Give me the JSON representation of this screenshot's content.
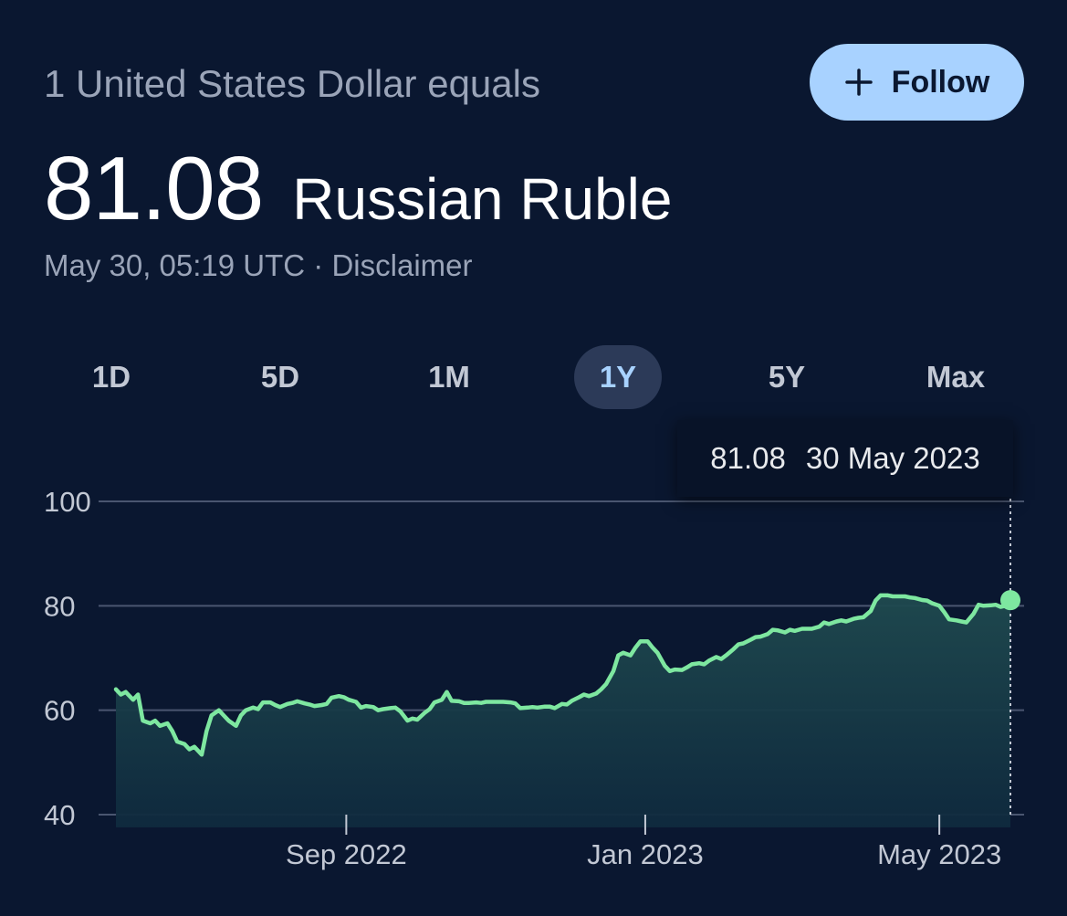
{
  "header": {
    "label": "1 United States Dollar equals",
    "follow_label": "Follow"
  },
  "rate": {
    "value": "81.08",
    "currency": "Russian Ruble",
    "timestamp": "May 30, 05:19 UTC",
    "separator": "·",
    "disclaimer": "Disclaimer"
  },
  "range_tabs": [
    {
      "label": "1D",
      "active": false
    },
    {
      "label": "5D",
      "active": false
    },
    {
      "label": "1M",
      "active": false
    },
    {
      "label": "1Y",
      "active": true
    },
    {
      "label": "5Y",
      "active": false
    },
    {
      "label": "Max",
      "active": false
    }
  ],
  "tooltip": {
    "value": "81.08",
    "date": "30 May 2023"
  },
  "colors": {
    "background": "#0a1730",
    "line": "#7ee7a0",
    "accent": "#a8d2ff",
    "gridline": "#4a5670"
  },
  "chart_data": {
    "type": "line",
    "title": "",
    "xlabel": "",
    "ylabel": "",
    "ylim": [
      40,
      100
    ],
    "yticks": [
      100,
      80,
      60,
      40
    ],
    "xticks": [
      {
        "date": "2022-09-01",
        "label": "Sep 2022"
      },
      {
        "date": "2023-01-01",
        "label": "Jan 2023"
      },
      {
        "date": "2023-05-01",
        "label": "May 2023"
      }
    ],
    "grid": true,
    "fill_area": true,
    "series": [
      {
        "name": "",
        "points": [
          [
            "2022-05-30",
            64
          ],
          [
            "2022-06-01",
            63
          ],
          [
            "2022-06-03",
            63.5
          ],
          [
            "2022-06-06",
            62
          ],
          [
            "2022-06-08",
            63
          ],
          [
            "2022-06-10",
            58
          ],
          [
            "2022-06-13",
            57.5
          ],
          [
            "2022-06-15",
            58
          ],
          [
            "2022-06-17",
            57
          ],
          [
            "2022-06-20",
            57.5
          ],
          [
            "2022-06-22",
            56
          ],
          [
            "2022-06-24",
            54
          ],
          [
            "2022-06-27",
            53.5
          ],
          [
            "2022-06-29",
            52.5
          ],
          [
            "2022-07-01",
            53
          ],
          [
            "2022-07-04",
            51.5
          ],
          [
            "2022-07-06",
            56
          ],
          [
            "2022-07-08",
            59
          ],
          [
            "2022-07-11",
            60
          ],
          [
            "2022-07-13",
            59
          ],
          [
            "2022-07-15",
            58
          ],
          [
            "2022-07-18",
            57
          ],
          [
            "2022-07-20",
            59
          ],
          [
            "2022-07-22",
            60
          ],
          [
            "2022-07-25",
            60.5
          ],
          [
            "2022-07-27",
            60.2
          ],
          [
            "2022-07-29",
            61.5
          ],
          [
            "2022-08-01",
            61.5
          ],
          [
            "2022-08-03",
            61
          ],
          [
            "2022-08-05",
            60.6
          ],
          [
            "2022-08-08",
            61.2
          ],
          [
            "2022-08-10",
            61.4
          ],
          [
            "2022-08-12",
            61.7
          ],
          [
            "2022-08-15",
            61.3
          ],
          [
            "2022-08-17",
            61.1
          ],
          [
            "2022-08-19",
            60.8
          ],
          [
            "2022-08-22",
            61
          ],
          [
            "2022-08-24",
            61.2
          ],
          [
            "2022-08-26",
            62.4
          ],
          [
            "2022-08-29",
            62.7
          ],
          [
            "2022-08-31",
            62.5
          ],
          [
            "2022-09-02",
            62
          ],
          [
            "2022-09-05",
            61.6
          ],
          [
            "2022-09-07",
            60.5
          ],
          [
            "2022-09-09",
            60.8
          ],
          [
            "2022-09-12",
            60.6
          ],
          [
            "2022-09-14",
            60
          ],
          [
            "2022-09-16",
            60.2
          ],
          [
            "2022-09-19",
            60.4
          ],
          [
            "2022-09-21",
            60.5
          ],
          [
            "2022-09-23",
            59.8
          ],
          [
            "2022-09-26",
            58
          ],
          [
            "2022-09-28",
            58.4
          ],
          [
            "2022-09-30",
            58.2
          ],
          [
            "2022-10-03",
            59.5
          ],
          [
            "2022-10-05",
            60.2
          ],
          [
            "2022-10-07",
            61.5
          ],
          [
            "2022-10-10",
            62
          ],
          [
            "2022-10-12",
            63.5
          ],
          [
            "2022-10-14",
            61.8
          ],
          [
            "2022-10-17",
            61.7
          ],
          [
            "2022-10-19",
            61.4
          ],
          [
            "2022-10-21",
            61.4
          ],
          [
            "2022-10-24",
            61.5
          ],
          [
            "2022-10-26",
            61.4
          ],
          [
            "2022-10-28",
            61.6
          ],
          [
            "2022-10-31",
            61.6
          ],
          [
            "2022-11-02",
            61.6
          ],
          [
            "2022-11-04",
            61.6
          ],
          [
            "2022-11-07",
            61.5
          ],
          [
            "2022-11-09",
            61.3
          ],
          [
            "2022-11-11",
            60.4
          ],
          [
            "2022-11-14",
            60.5
          ],
          [
            "2022-11-16",
            60.6
          ],
          [
            "2022-11-18",
            60.5
          ],
          [
            "2022-11-21",
            60.7
          ],
          [
            "2022-11-23",
            60.7
          ],
          [
            "2022-11-25",
            60.4
          ],
          [
            "2022-11-28",
            61.2
          ],
          [
            "2022-11-30",
            61.1
          ],
          [
            "2022-12-02",
            61.8
          ],
          [
            "2022-12-05",
            62.5
          ],
          [
            "2022-12-07",
            63
          ],
          [
            "2022-12-09",
            62.7
          ],
          [
            "2022-12-12",
            63.2
          ],
          [
            "2022-12-14",
            64
          ],
          [
            "2022-12-16",
            65
          ],
          [
            "2022-12-19",
            67.5
          ],
          [
            "2022-12-21",
            70.5
          ],
          [
            "2022-12-23",
            71
          ],
          [
            "2022-12-26",
            70.5
          ],
          [
            "2022-12-28",
            72
          ],
          [
            "2022-12-30",
            73.2
          ],
          [
            "2023-01-02",
            73.2
          ],
          [
            "2023-01-04",
            72
          ],
          [
            "2023-01-06",
            71
          ],
          [
            "2023-01-09",
            68.5
          ],
          [
            "2023-01-11",
            67.5
          ],
          [
            "2023-01-13",
            67.8
          ],
          [
            "2023-01-16",
            67.7
          ],
          [
            "2023-01-18",
            68.2
          ],
          [
            "2023-01-20",
            68.8
          ],
          [
            "2023-01-23",
            69
          ],
          [
            "2023-01-25",
            68.8
          ],
          [
            "2023-01-27",
            69.5
          ],
          [
            "2023-01-30",
            70.2
          ],
          [
            "2023-02-01",
            69.8
          ],
          [
            "2023-02-03",
            70.5
          ],
          [
            "2023-02-06",
            71.7
          ],
          [
            "2023-02-08",
            72.6
          ],
          [
            "2023-02-10",
            72.8
          ],
          [
            "2023-02-13",
            73.5
          ],
          [
            "2023-02-15",
            74
          ],
          [
            "2023-02-17",
            74.1
          ],
          [
            "2023-02-20",
            74.6
          ],
          [
            "2023-02-22",
            75.4
          ],
          [
            "2023-02-24",
            75.3
          ],
          [
            "2023-02-27",
            74.9
          ],
          [
            "2023-03-01",
            75.4
          ],
          [
            "2023-03-03",
            75.2
          ],
          [
            "2023-03-06",
            75.6
          ],
          [
            "2023-03-08",
            75.6
          ],
          [
            "2023-03-10",
            75.6
          ],
          [
            "2023-03-13",
            76
          ],
          [
            "2023-03-15",
            76.8
          ],
          [
            "2023-03-17",
            76.5
          ],
          [
            "2023-03-20",
            77
          ],
          [
            "2023-03-22",
            77.2
          ],
          [
            "2023-03-24",
            77
          ],
          [
            "2023-03-27",
            77.5
          ],
          [
            "2023-03-29",
            77.7
          ],
          [
            "2023-03-31",
            77.8
          ],
          [
            "2023-04-03",
            79
          ],
          [
            "2023-04-05",
            81
          ],
          [
            "2023-04-07",
            82
          ],
          [
            "2023-04-10",
            82
          ],
          [
            "2023-04-12",
            81.8
          ],
          [
            "2023-04-14",
            81.8
          ],
          [
            "2023-04-17",
            81.8
          ],
          [
            "2023-04-19",
            81.6
          ],
          [
            "2023-04-21",
            81.5
          ],
          [
            "2023-04-24",
            81.1
          ],
          [
            "2023-04-26",
            81
          ],
          [
            "2023-04-28",
            80.5
          ],
          [
            "2023-05-01",
            80
          ],
          [
            "2023-05-03",
            78.8
          ],
          [
            "2023-05-05",
            77.4
          ],
          [
            "2023-05-08",
            77.2
          ],
          [
            "2023-05-10",
            77
          ],
          [
            "2023-05-12",
            76.8
          ],
          [
            "2023-05-15",
            78.5
          ],
          [
            "2023-05-17",
            80.2
          ],
          [
            "2023-05-19",
            80
          ],
          [
            "2023-05-22",
            80.1
          ],
          [
            "2023-05-24",
            80.2
          ],
          [
            "2023-05-26",
            79.8
          ],
          [
            "2023-05-28",
            80
          ],
          [
            "2023-05-30",
            81.08
          ]
        ]
      }
    ],
    "highlight": {
      "date": "2023-05-30",
      "value": 81.08
    }
  }
}
